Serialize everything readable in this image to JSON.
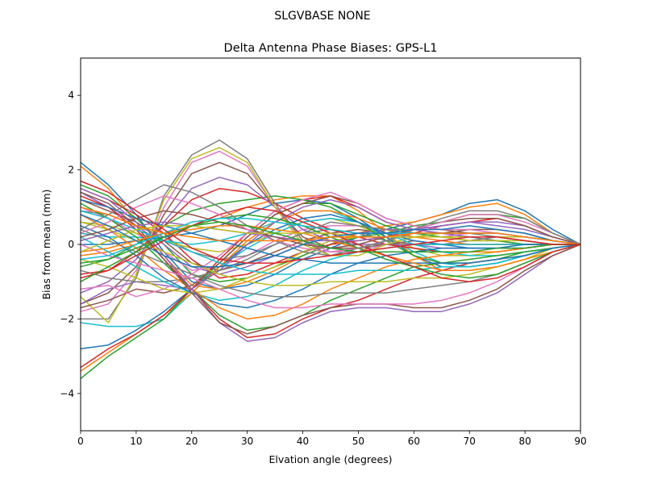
{
  "chart_data": {
    "type": "line",
    "suptitle": "SLGVBASE        NONE",
    "title": "Delta Antenna Phase Biases: GPS-L1",
    "xlabel": "Elvation angle (degrees)",
    "ylabel": "Bias from mean (mm)",
    "xlim": [
      0,
      90
    ],
    "ylim": [
      -5,
      5
    ],
    "x": [
      0,
      5,
      10,
      15,
      20,
      25,
      30,
      35,
      40,
      45,
      50,
      55,
      60,
      65,
      70,
      75,
      80,
      85,
      90
    ],
    "xticks": [
      "0",
      "10",
      "20",
      "30",
      "40",
      "50",
      "60",
      "70",
      "80",
      "90"
    ],
    "yticks": [
      "4",
      "2",
      "0",
      "−2",
      "−4"
    ],
    "grid": false,
    "legend": "none",
    "colors": [
      "#1f77b4",
      "#ff7f0e",
      "#2ca02c",
      "#d62728",
      "#9467bd",
      "#8c564b",
      "#e377c2",
      "#7f7f7f",
      "#bcbd22",
      "#17becf"
    ],
    "series": [
      {
        "values": [
          2.2,
          1.6,
          0.8,
          -0.2,
          -1.0,
          -1.2,
          -1.1,
          -0.8,
          -0.4,
          -0.1,
          0.2,
          0.4,
          0.6,
          0.8,
          1.1,
          1.2,
          0.9,
          0.4,
          0.0
        ]
      },
      {
        "values": [
          2.1,
          1.5,
          0.6,
          -0.3,
          -1.1,
          -1.2,
          -1.0,
          -0.7,
          -0.3,
          0.0,
          0.3,
          0.5,
          0.6,
          0.8,
          1.0,
          1.1,
          0.8,
          0.3,
          0.0
        ]
      },
      {
        "values": [
          1.6,
          1.3,
          0.7,
          0.0,
          -0.8,
          -1.0,
          -0.9,
          -0.6,
          -0.3,
          0.0,
          0.2,
          0.3,
          0.5,
          0.6,
          0.8,
          0.8,
          0.7,
          0.3,
          0.0
        ]
      },
      {
        "values": [
          1.5,
          1.2,
          0.8,
          0.3,
          -0.4,
          -0.9,
          -0.8,
          -0.5,
          -0.2,
          0.0,
          0.1,
          0.2,
          0.3,
          0.5,
          0.6,
          0.7,
          0.5,
          0.2,
          0.0
        ]
      },
      {
        "values": [
          1.4,
          1.0,
          0.5,
          0.0,
          -0.6,
          -0.8,
          -0.6,
          -0.3,
          0.0,
          0.2,
          0.3,
          0.4,
          0.4,
          0.5,
          0.6,
          0.6,
          0.5,
          0.2,
          0.0
        ]
      },
      {
        "values": [
          1.2,
          0.9,
          0.6,
          0.1,
          -0.5,
          -0.7,
          -0.5,
          -0.2,
          0.1,
          0.3,
          0.4,
          0.3,
          0.3,
          0.3,
          0.4,
          0.4,
          0.3,
          0.1,
          0.0
        ]
      },
      {
        "values": [
          1.0,
          0.7,
          0.3,
          -0.2,
          -0.7,
          -0.6,
          -0.3,
          0.1,
          0.4,
          0.5,
          0.5,
          0.3,
          0.2,
          0.2,
          0.3,
          0.3,
          0.2,
          0.1,
          0.0
        ]
      },
      {
        "values": [
          0.9,
          0.8,
          0.5,
          0.2,
          -0.2,
          -0.4,
          -0.3,
          0.0,
          0.3,
          0.4,
          0.3,
          0.1,
          0.0,
          0.0,
          0.1,
          0.2,
          0.2,
          0.1,
          0.0
        ]
      },
      {
        "values": [
          0.6,
          0.5,
          0.3,
          0.1,
          -0.1,
          -0.2,
          0.0,
          0.3,
          0.6,
          0.7,
          0.5,
          0.2,
          -0.1,
          -0.3,
          -0.3,
          -0.2,
          -0.1,
          0.0,
          0.0
        ]
      },
      {
        "values": [
          0.3,
          0.2,
          0.2,
          0.1,
          0.0,
          0.1,
          0.3,
          0.6,
          0.9,
          0.9,
          0.6,
          0.2,
          -0.2,
          -0.5,
          -0.6,
          -0.5,
          -0.3,
          -0.1,
          0.0
        ]
      },
      {
        "values": [
          0.0,
          0.0,
          0.1,
          0.2,
          0.3,
          0.5,
          0.8,
          1.1,
          1.2,
          1.1,
          0.7,
          0.2,
          -0.3,
          -0.6,
          -0.6,
          -0.5,
          -0.3,
          -0.1,
          0.0
        ]
      },
      {
        "values": [
          -0.3,
          -0.2,
          0.0,
          0.3,
          0.5,
          0.7,
          1.0,
          1.2,
          1.3,
          1.3,
          0.9,
          0.3,
          -0.3,
          -0.7,
          -0.7,
          -0.6,
          -0.4,
          -0.1,
          0.0
        ]
      },
      {
        "values": [
          -0.6,
          -0.4,
          0.0,
          0.5,
          0.9,
          1.1,
          1.2,
          1.3,
          1.2,
          1.0,
          0.6,
          0.1,
          -0.3,
          -0.5,
          -0.5,
          -0.4,
          -0.2,
          -0.1,
          0.0
        ]
      },
      {
        "values": [
          -0.9,
          -0.7,
          -0.2,
          0.5,
          1.2,
          1.5,
          1.4,
          1.1,
          0.7,
          0.4,
          0.2,
          0.0,
          -0.1,
          -0.2,
          -0.2,
          -0.2,
          -0.1,
          0.0,
          0.0
        ]
      },
      {
        "values": [
          -1.3,
          -1.0,
          -0.4,
          0.6,
          1.5,
          1.8,
          1.6,
          1.0,
          0.4,
          0.1,
          0.0,
          0.0,
          0.0,
          -0.1,
          -0.1,
          -0.1,
          -0.1,
          0.0,
          0.0
        ]
      },
      {
        "values": [
          -1.6,
          -1.3,
          -0.6,
          0.8,
          1.9,
          2.2,
          1.9,
          1.0,
          0.2,
          -0.1,
          -0.1,
          0.0,
          0.1,
          0.0,
          0.0,
          0.0,
          0.0,
          0.0,
          0.0
        ]
      },
      {
        "values": [
          -1.8,
          -1.6,
          -0.7,
          1.0,
          2.2,
          2.5,
          2.1,
          1.0,
          0.1,
          -0.2,
          -0.2,
          0.0,
          0.2,
          0.2,
          0.1,
          0.1,
          0.0,
          0.0,
          0.0
        ]
      },
      {
        "values": [
          -2.0,
          -2.0,
          -0.9,
          1.3,
          2.4,
          2.8,
          2.3,
          1.1,
          0.1,
          -0.3,
          -0.2,
          0.1,
          0.3,
          0.3,
          0.2,
          0.1,
          0.0,
          0.0,
          0.0
        ]
      },
      {
        "values": [
          -1.4,
          -2.1,
          -0.8,
          1.2,
          2.3,
          2.6,
          2.2,
          1.0,
          0.0,
          -0.3,
          -0.3,
          0.0,
          0.2,
          0.3,
          0.3,
          0.2,
          0.1,
          0.0,
          0.0
        ]
      },
      {
        "values": [
          -2.1,
          -2.2,
          -2.2,
          -2.0,
          -1.3,
          -0.6,
          -0.1,
          0.3,
          0.6,
          0.7,
          0.6,
          0.3,
          0.0,
          -0.2,
          -0.3,
          -0.3,
          -0.2,
          -0.1,
          0.0
        ]
      },
      {
        "values": [
          -2.8,
          -2.7,
          -2.3,
          -1.8,
          -1.2,
          -0.6,
          0.0,
          0.4,
          0.7,
          0.8,
          0.6,
          0.3,
          0.1,
          0.0,
          -0.1,
          -0.1,
          -0.1,
          0.0,
          0.0
        ]
      },
      {
        "values": [
          -3.4,
          -2.9,
          -2.4,
          -1.9,
          -1.3,
          -0.6,
          0.1,
          0.6,
          0.9,
          0.9,
          0.7,
          0.4,
          0.2,
          0.1,
          0.0,
          0.0,
          0.0,
          0.0,
          0.0
        ]
      },
      {
        "values": [
          -3.6,
          -3.0,
          -2.5,
          -2.0,
          -1.2,
          -0.5,
          0.2,
          0.8,
          1.1,
          1.1,
          0.8,
          0.5,
          0.3,
          0.2,
          0.1,
          0.1,
          0.0,
          0.0,
          0.0
        ]
      },
      {
        "values": [
          -3.3,
          -2.8,
          -2.4,
          -1.9,
          -1.2,
          -0.4,
          0.3,
          0.9,
          1.2,
          1.3,
          1.0,
          0.6,
          0.4,
          0.3,
          0.2,
          0.2,
          0.1,
          0.0,
          0.0
        ]
      },
      {
        "values": [
          -1.6,
          -1.2,
          -1.0,
          -1.1,
          -1.2,
          -0.7,
          0.0,
          0.6,
          1.0,
          1.2,
          1.0,
          0.6,
          0.4,
          0.3,
          0.2,
          0.2,
          0.1,
          0.0,
          0.0
        ]
      },
      {
        "values": [
          -1.7,
          -1.5,
          -1.2,
          -1.3,
          -1.1,
          -0.5,
          0.2,
          0.8,
          1.1,
          1.3,
          1.1,
          0.7,
          0.5,
          0.4,
          0.3,
          0.3,
          0.2,
          0.1,
          0.0
        ]
      },
      {
        "values": [
          -1.2,
          -1.1,
          -1.4,
          -1.2,
          -0.8,
          -0.3,
          0.3,
          0.9,
          1.2,
          1.4,
          1.1,
          0.7,
          0.5,
          0.4,
          0.4,
          0.3,
          0.2,
          0.1,
          0.0
        ]
      },
      {
        "values": [
          -0.7,
          -0.9,
          -1.0,
          -1.0,
          -0.9,
          -0.7,
          -0.4,
          0.0,
          0.3,
          0.6,
          0.5,
          0.4,
          0.3,
          0.3,
          0.3,
          0.2,
          0.2,
          0.1,
          0.0
        ]
      },
      {
        "values": [
          -0.4,
          -0.6,
          -0.9,
          -1.2,
          -1.3,
          -1.2,
          -0.9,
          -0.6,
          -0.2,
          0.1,
          0.2,
          0.2,
          0.2,
          0.2,
          0.1,
          0.1,
          0.1,
          0.0,
          0.0
        ]
      },
      {
        "values": [
          0.2,
          -0.2,
          -0.6,
          -1.0,
          -1.3,
          -1.5,
          -1.4,
          -1.1,
          -0.7,
          -0.4,
          -0.2,
          -0.1,
          0.0,
          0.0,
          0.0,
          0.0,
          0.0,
          0.0,
          0.0
        ]
      },
      {
        "values": [
          0.5,
          0.2,
          -0.3,
          -0.9,
          -1.3,
          -1.6,
          -1.7,
          -1.5,
          -1.2,
          -0.8,
          -0.5,
          -0.3,
          -0.2,
          -0.1,
          -0.1,
          -0.1,
          0.0,
          0.0,
          0.0
        ]
      },
      {
        "values": [
          0.8,
          0.4,
          -0.1,
          -0.7,
          -1.2,
          -1.7,
          -2.0,
          -1.9,
          -1.6,
          -1.2,
          -0.9,
          -0.6,
          -0.4,
          -0.3,
          -0.2,
          -0.2,
          -0.1,
          0.0,
          0.0
        ]
      },
      {
        "values": [
          1.1,
          0.7,
          0.2,
          -0.5,
          -1.2,
          -1.9,
          -2.3,
          -2.2,
          -1.9,
          -1.5,
          -1.2,
          -0.9,
          -0.6,
          -0.5,
          -0.4,
          -0.3,
          -0.2,
          -0.1,
          0.0
        ]
      },
      {
        "values": [
          1.3,
          1.0,
          0.4,
          -0.4,
          -1.2,
          -2.0,
          -2.5,
          -2.4,
          -2.0,
          -1.7,
          -1.5,
          -1.2,
          -0.9,
          -0.7,
          -0.5,
          -0.4,
          -0.3,
          -0.1,
          0.0
        ]
      },
      {
        "values": [
          1.5,
          1.2,
          0.6,
          -0.3,
          -1.2,
          -2.1,
          -2.6,
          -2.5,
          -2.1,
          -1.8,
          -1.7,
          -1.7,
          -1.8,
          -1.8,
          -1.6,
          -1.3,
          -0.8,
          -0.3,
          0.0
        ]
      },
      {
        "values": [
          1.4,
          1.1,
          0.5,
          -0.4,
          -1.3,
          -2.1,
          -2.4,
          -2.2,
          -1.9,
          -1.7,
          -1.6,
          -1.6,
          -1.7,
          -1.7,
          -1.5,
          -1.2,
          -0.7,
          -0.3,
          0.0
        ]
      },
      {
        "values": [
          0.0,
          -0.3,
          -0.5,
          -0.7,
          -0.9,
          -1.2,
          -1.5,
          -1.7,
          -1.7,
          -1.6,
          -1.6,
          -1.6,
          -1.6,
          -1.5,
          -1.3,
          -1.0,
          -0.6,
          -0.2,
          0.0
        ]
      },
      {
        "values": [
          0.4,
          0.1,
          -0.2,
          -0.5,
          -0.8,
          -1.1,
          -1.3,
          -1.4,
          -1.4,
          -1.3,
          -1.3,
          -1.3,
          -1.2,
          -1.1,
          -1.0,
          -0.8,
          -0.5,
          -0.2,
          0.0
        ]
      },
      {
        "values": [
          0.6,
          0.4,
          0.1,
          -0.2,
          -0.5,
          -0.8,
          -1.0,
          -1.1,
          -1.1,
          -1.0,
          -1.0,
          -1.0,
          -0.9,
          -0.9,
          -0.8,
          -0.6,
          -0.4,
          -0.1,
          0.0
        ]
      },
      {
        "values": [
          0.9,
          0.7,
          0.4,
          0.1,
          -0.2,
          -0.5,
          -0.7,
          -0.8,
          -0.8,
          -0.8,
          -0.7,
          -0.7,
          -0.7,
          -0.6,
          -0.6,
          -0.5,
          -0.3,
          -0.1,
          0.0
        ]
      },
      {
        "values": [
          1.2,
          1.0,
          0.7,
          0.5,
          0.3,
          0.1,
          -0.1,
          -0.3,
          -0.4,
          -0.5,
          -0.5,
          -0.5,
          -0.5,
          -0.5,
          -0.5,
          -0.4,
          -0.3,
          -0.1,
          0.0
        ]
      },
      {
        "values": [
          -0.2,
          -0.1,
          0.1,
          0.3,
          0.4,
          0.5,
          0.5,
          0.4,
          0.3,
          0.1,
          -0.1,
          -0.3,
          -0.5,
          -0.7,
          -0.7,
          -0.6,
          -0.4,
          -0.2,
          0.0
        ]
      },
      {
        "values": [
          -0.5,
          -0.4,
          -0.1,
          0.2,
          0.5,
          0.7,
          0.8,
          0.7,
          0.5,
          0.2,
          -0.1,
          -0.4,
          -0.6,
          -0.8,
          -0.9,
          -0.8,
          -0.5,
          -0.2,
          0.0
        ]
      },
      {
        "values": [
          -0.8,
          -0.7,
          -0.3,
          0.1,
          0.5,
          0.8,
          1.0,
          0.9,
          0.6,
          0.3,
          0.0,
          -0.3,
          -0.6,
          -0.9,
          -1.0,
          -0.9,
          -0.6,
          -0.2,
          0.0
        ]
      },
      {
        "values": [
          0.1,
          0.3,
          0.5,
          0.6,
          0.5,
          0.4,
          0.3,
          0.2,
          0.1,
          0.1,
          0.1,
          0.2,
          0.4,
          0.5,
          0.6,
          0.5,
          0.4,
          0.2,
          0.0
        ]
      },
      {
        "values": [
          0.2,
          0.4,
          0.7,
          0.9,
          0.8,
          0.6,
          0.4,
          0.2,
          0.0,
          -0.1,
          0.0,
          0.2,
          0.4,
          0.6,
          0.7,
          0.7,
          0.5,
          0.2,
          0.0
        ]
      },
      {
        "values": [
          0.3,
          0.6,
          1.0,
          1.3,
          1.1,
          0.8,
          0.4,
          0.1,
          -0.1,
          -0.2,
          -0.1,
          0.1,
          0.4,
          0.6,
          0.8,
          0.8,
          0.6,
          0.3,
          0.0
        ]
      },
      {
        "values": [
          0.4,
          0.8,
          1.2,
          1.6,
          1.4,
          1.0,
          0.5,
          0.1,
          -0.2,
          -0.3,
          -0.1,
          0.1,
          0.4,
          0.7,
          0.9,
          0.9,
          0.7,
          0.3,
          0.0
        ]
      },
      {
        "values": [
          -0.2,
          0.1,
          0.4,
          0.5,
          0.5,
          0.4,
          0.3,
          0.3,
          0.3,
          0.3,
          0.2,
          0.2,
          0.2,
          0.2,
          0.2,
          0.2,
          0.2,
          0.1,
          0.0
        ]
      },
      {
        "values": [
          -0.4,
          -0.3,
          0.0,
          0.3,
          0.6,
          0.7,
          0.7,
          0.6,
          0.5,
          0.4,
          0.3,
          0.3,
          0.3,
          0.3,
          0.3,
          0.3,
          0.2,
          0.1,
          0.0
        ]
      },
      {
        "values": [
          0.8,
          0.5,
          0.1,
          -0.3,
          -0.6,
          -0.6,
          -0.5,
          -0.3,
          0.0,
          0.2,
          0.3,
          0.3,
          0.4,
          0.4,
          0.5,
          0.4,
          0.3,
          0.1,
          0.0
        ]
      },
      {
        "values": [
          1.0,
          0.8,
          0.5,
          0.3,
          0.2,
          0.1,
          0.1,
          0.1,
          0.1,
          0.2,
          0.2,
          0.2,
          0.3,
          0.3,
          0.3,
          0.3,
          0.2,
          0.1,
          0.0
        ]
      },
      {
        "values": [
          -1.0,
          -0.6,
          -0.2,
          0.2,
          0.5,
          0.6,
          0.5,
          0.3,
          0.1,
          -0.1,
          -0.2,
          -0.2,
          -0.2,
          -0.2,
          -0.2,
          -0.1,
          -0.1,
          0.0,
          0.0
        ]
      },
      {
        "values": [
          1.7,
          1.4,
          0.9,
          0.4,
          -0.1,
          -0.4,
          -0.5,
          -0.5,
          -0.4,
          -0.3,
          -0.2,
          -0.1,
          0.0,
          0.1,
          0.2,
          0.2,
          0.1,
          0.0,
          0.0
        ]
      }
    ]
  }
}
